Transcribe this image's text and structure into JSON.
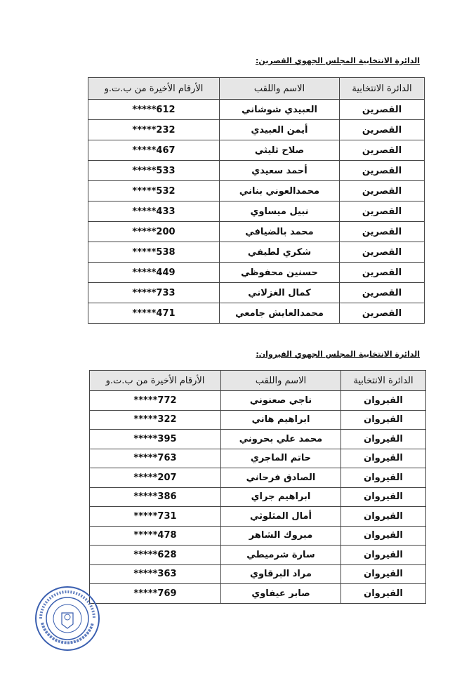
{
  "sections": [
    {
      "heading": "الدائرة الانتخابية المجلس الجهوي القصرين:",
      "headers": [
        "الدائرة الانتخابية",
        "الاسم واللقب",
        "الأرقام الأخيرة من ب.ت.و"
      ],
      "rows": [
        [
          "القصرين",
          "العبيدي شوشاني",
          "*****612"
        ],
        [
          "القصرين",
          "أيمن العبيدي",
          "*****232"
        ],
        [
          "القصرين",
          "صلاح ثليثي",
          "*****467"
        ],
        [
          "القصرين",
          "أحمد سعيدي",
          "*****533"
        ],
        [
          "القصرين",
          "محمدالعوني بناني",
          "*****532"
        ],
        [
          "القصرين",
          "نبيل ميساوي",
          "*****433"
        ],
        [
          "القصرين",
          "محمد بالضيافي",
          "*****200"
        ],
        [
          "القصرين",
          "شكري لطيفي",
          "*****538"
        ],
        [
          "القصرين",
          "حسنين محفوظي",
          "*****449"
        ],
        [
          "القصرين",
          "كمال الغزلاني",
          "*****733"
        ],
        [
          "القصرين",
          "محمدالعايش  جامعي",
          "*****471"
        ]
      ]
    },
    {
      "heading": "الدائرة الانتخابية المجلس الجهوي القيروان:",
      "headers": [
        "الدائرة الانتخابية",
        "الاسم واللقب",
        "الأرقام الأخيرة من ب.ت.و"
      ],
      "rows": [
        [
          "القيروان",
          "ناجي صعنوني",
          "*****772"
        ],
        [
          "القيروان",
          "ابراهيم هاني",
          "*****322"
        ],
        [
          "القيروان",
          "محمد علي بحروني",
          "*****395"
        ],
        [
          "القيروان",
          "حاتم الماجري",
          "*****763"
        ],
        [
          "القيروان",
          "الصادق فرحاني",
          "*****207"
        ],
        [
          "القيروان",
          "ابراهيم جراي",
          "*****386"
        ],
        [
          "القيروان",
          "أمال المثلوثي",
          "*****731"
        ],
        [
          "القيروان",
          "مبروك الشاهر",
          "*****478"
        ],
        [
          "القيروان",
          "سارة شرميطي",
          "*****628"
        ],
        [
          "القيروان",
          "مراد البرقاوي",
          "*****363"
        ],
        [
          "القيروان",
          "صابر عيفاوي",
          "*****769"
        ]
      ]
    }
  ],
  "stamp": {
    "text_top": "الجمهورية التونسية",
    "text_bottom": "الهيئة العليا المستقلة للانتخابات",
    "color": "#3a5fb0"
  }
}
